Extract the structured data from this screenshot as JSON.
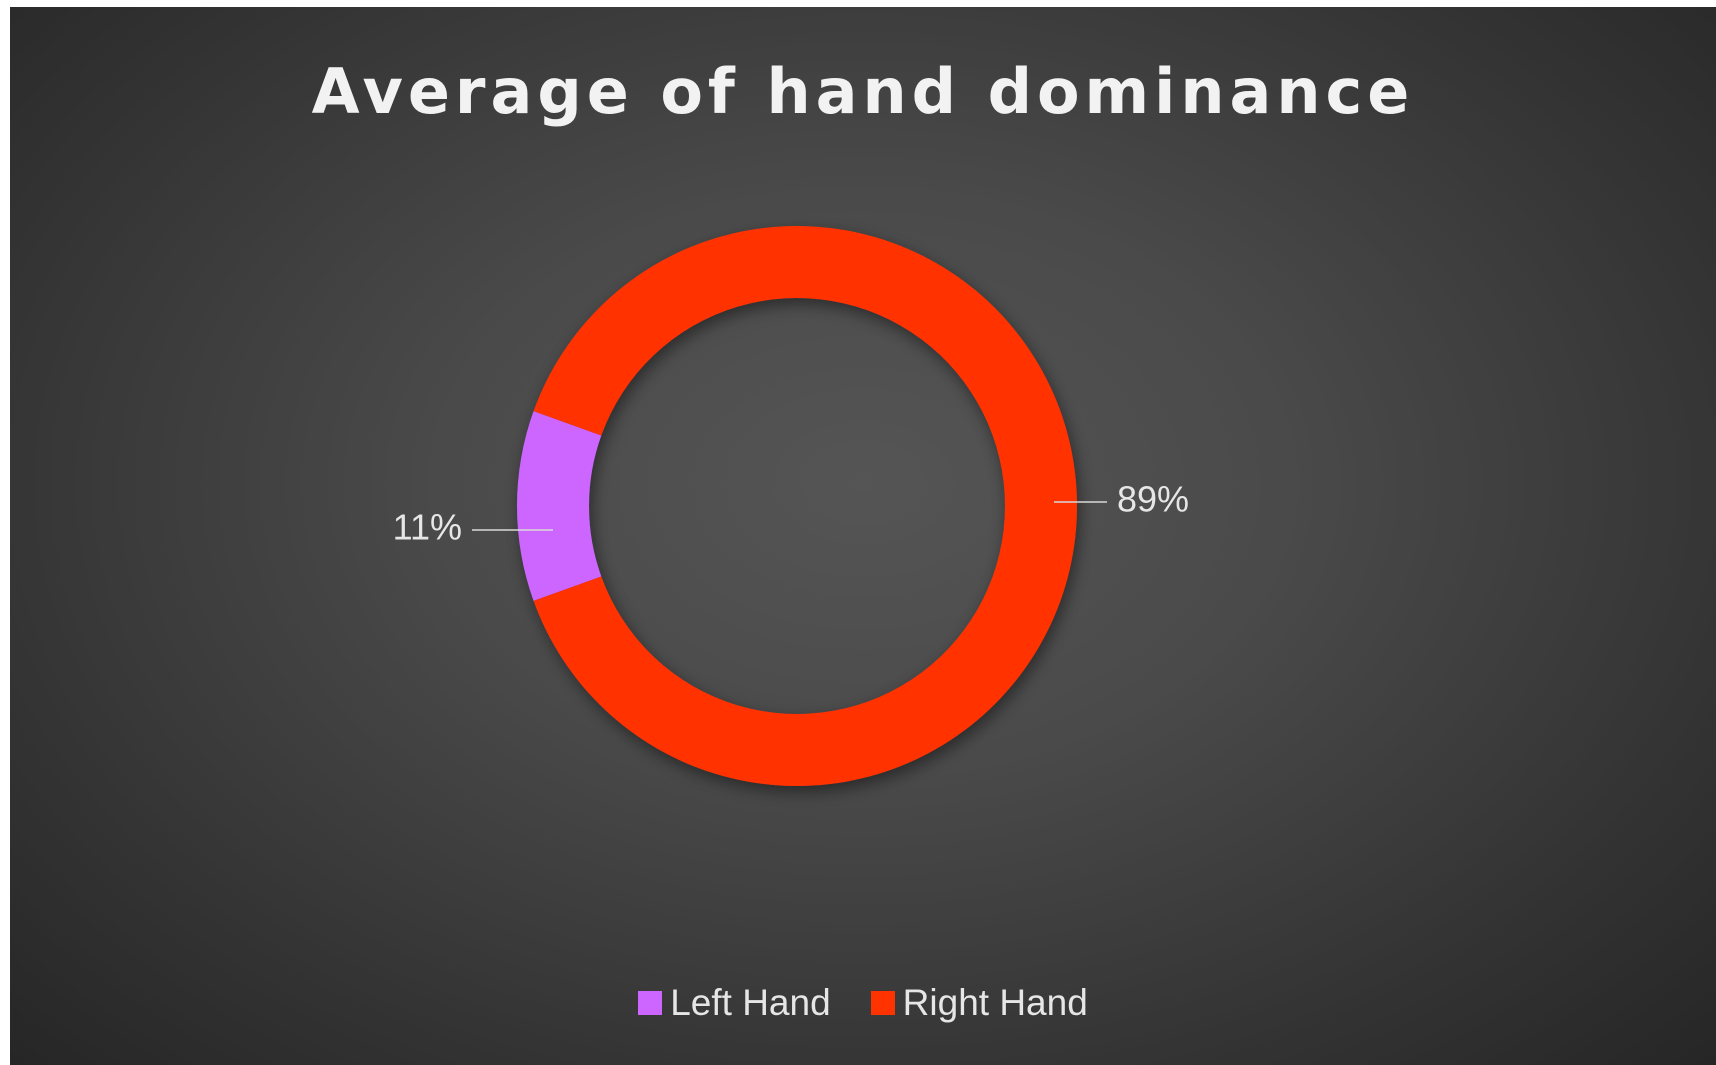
{
  "chart_data": {
    "type": "pie",
    "variant": "donut",
    "title": "Average of hand dominance",
    "slices": [
      {
        "name": "Left Hand",
        "value": 11,
        "label": "11%",
        "color": "#cc66ff"
      },
      {
        "name": "Right Hand",
        "value": 89,
        "label": "89%",
        "color": "#ff3300"
      }
    ],
    "legend": {
      "position": "bottom",
      "entries": [
        "Left Hand",
        "Right Hand"
      ]
    },
    "background_color": "#404040"
  }
}
